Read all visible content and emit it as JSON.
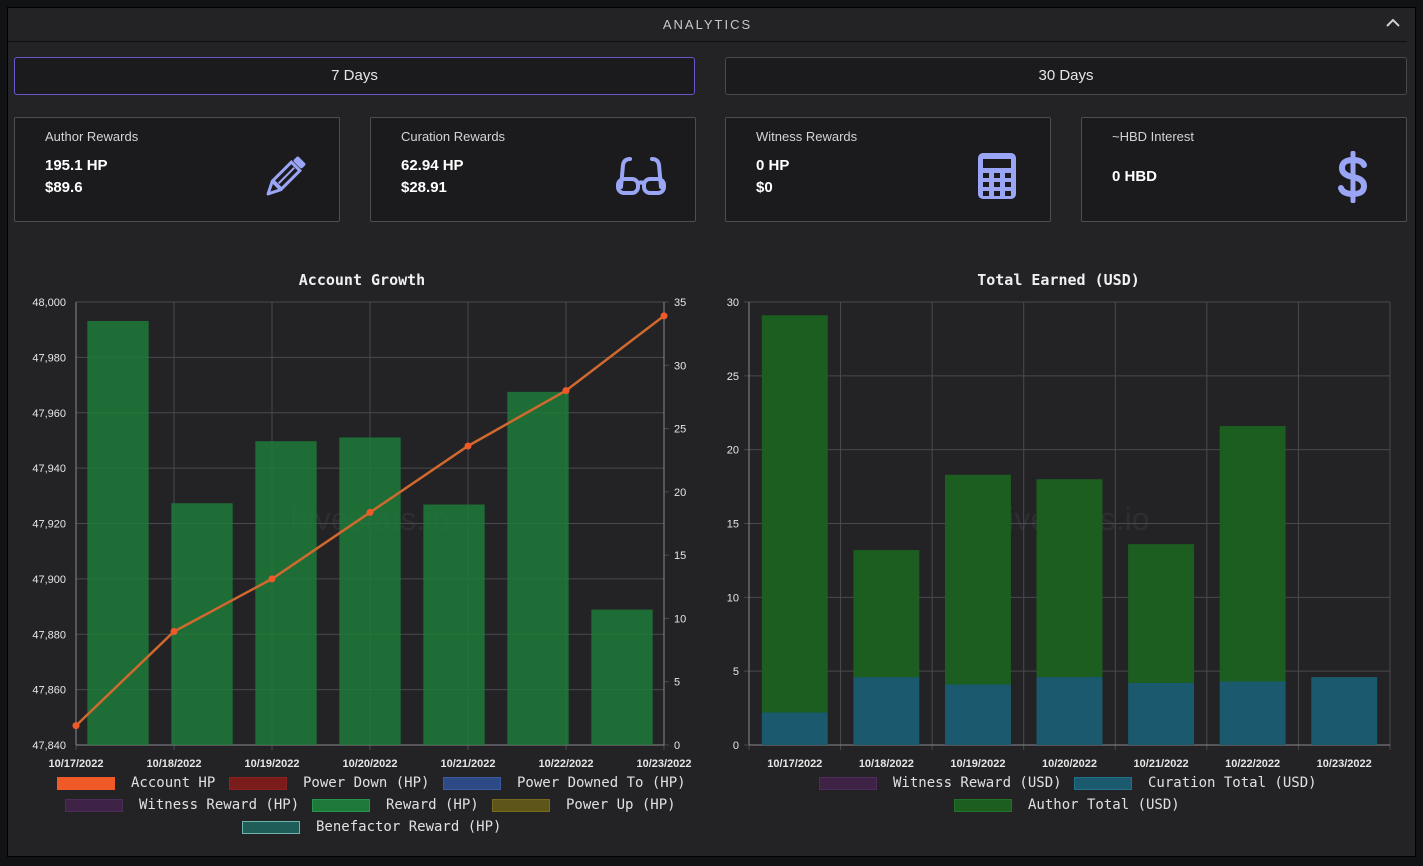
{
  "header": {
    "title": "ANALYTICS"
  },
  "range_buttons": [
    {
      "label": "7 Days",
      "active": true
    },
    {
      "label": "30 Days",
      "active": false
    }
  ],
  "cards": [
    {
      "title": "Author Rewards",
      "lines": [
        "195.1 HP",
        "$89.6"
      ],
      "icon": "pencil-icon"
    },
    {
      "title": "Curation Rewards",
      "lines": [
        "62.94 HP",
        "$28.91"
      ],
      "icon": "glasses-icon"
    },
    {
      "title": "Witness Rewards",
      "lines": [
        "0 HP",
        "$0"
      ],
      "icon": "calculator-icon"
    },
    {
      "title": "~HBD Interest",
      "lines": [
        "0 HBD"
      ],
      "icon": "dollar-icon"
    }
  ],
  "colors": {
    "accent_icon": "#9aa6f5",
    "reward_green": "#1d7a3a",
    "account_line": "#e0642a",
    "author_green": "#1b5e20",
    "curation_blue": "#1b5a6e"
  },
  "chart_data": [
    {
      "type": "bar",
      "title": "Account Growth",
      "watermark": "hivestats.io",
      "categories": [
        "10/17/2022",
        "10/18/2022",
        "10/19/2022",
        "10/20/2022",
        "10/21/2022",
        "10/22/2022",
        "10/23/2022"
      ],
      "y_left": {
        "ylim": [
          47840,
          48000
        ],
        "ticks": [
          "48,000",
          "47,980",
          "47,960",
          "47,940",
          "47,920",
          "47,900",
          "47,880",
          "47,860",
          "47,840"
        ]
      },
      "y_right": {
        "ylim": [
          0,
          35
        ],
        "ticks": [
          "35",
          "30",
          "25",
          "20",
          "15",
          "10",
          "5",
          "0"
        ]
      },
      "series": [
        {
          "name": "Account HP",
          "type": "line",
          "axis": "left",
          "color": "#f05a28",
          "values": [
            47847,
            47881,
            47900,
            47924,
            47948,
            47968,
            47995
          ]
        },
        {
          "name": "Reward (HP)",
          "type": "bar",
          "axis": "right",
          "color": "#1d7a3a",
          "values": [
            33.5,
            19.1,
            24.0,
            24.3,
            19.0,
            27.9,
            10.7
          ]
        }
      ],
      "legend": [
        {
          "label": "Account HP",
          "color": "#f05a28",
          "border": "#f05a28"
        },
        {
          "label": "Power Down (HP)",
          "color": "#7a1c1c",
          "border": "#8a2222"
        },
        {
          "label": "Power Downed To (HP)",
          "color": "#2d4a86",
          "border": "#3a5aa0"
        },
        {
          "label": "Witness Reward (HP)",
          "color": "#3e2347",
          "border": "#4c2c58"
        },
        {
          "label": "Reward (HP)",
          "color": "#1d7a3a",
          "border": "#26944a"
        },
        {
          "label": "Power Up (HP)",
          "color": "#5e5518",
          "border": "#77691e"
        },
        {
          "label": "Benefactor Reward (HP)",
          "color": "#1f5e58",
          "border": "#6fb3ad"
        }
      ]
    },
    {
      "type": "bar",
      "stacked": true,
      "title": "Total Earned (USD)",
      "watermark": "hivestats.io",
      "categories": [
        "10/17/2022",
        "10/18/2022",
        "10/19/2022",
        "10/20/2022",
        "10/21/2022",
        "10/22/2022",
        "10/23/2022"
      ],
      "ylim": [
        0,
        30
      ],
      "y_ticks": [
        "30",
        "25",
        "20",
        "15",
        "10",
        "5",
        "0"
      ],
      "series": [
        {
          "name": "Witness Reward (USD)",
          "color": "#3e2347",
          "values": [
            0,
            0,
            0,
            0,
            0,
            0,
            0
          ]
        },
        {
          "name": "Curation Total (USD)",
          "color": "#1b5a6e",
          "values": [
            2.2,
            4.6,
            4.1,
            4.6,
            4.2,
            4.3,
            4.6
          ]
        },
        {
          "name": "Author Total (USD)",
          "color": "#1b5e20",
          "values": [
            26.9,
            8.6,
            14.2,
            13.4,
            9.4,
            17.3,
            0
          ]
        }
      ],
      "legend": [
        {
          "label": "Witness Reward (USD)",
          "color": "#3e2347",
          "border": "#4c2c58"
        },
        {
          "label": "Curation Total (USD)",
          "color": "#1b5a6e",
          "border": "#22708a"
        },
        {
          "label": "Author Total (USD)",
          "color": "#1b5e20",
          "border": "#237028"
        }
      ]
    }
  ]
}
